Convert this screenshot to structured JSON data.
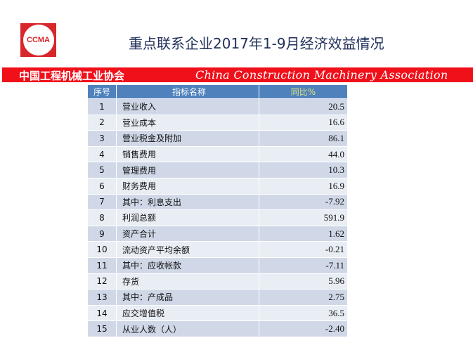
{
  "logo": "CCMA",
  "title": "重点联系企业2017年1-9月经济效益情况",
  "band": {
    "cn": "中国工程机械工业协会",
    "en": "China Construction Machinery Association",
    "color": "#f0101a"
  },
  "table": {
    "headers": [
      "序号",
      "指标名称",
      "同比%"
    ],
    "rows": [
      [
        "1",
        "营业收入",
        "20.5"
      ],
      [
        "2",
        "营业成本",
        "16.6"
      ],
      [
        "3",
        "营业税金及附加",
        "86.1"
      ],
      [
        "4",
        "销售费用",
        "44.0"
      ],
      [
        "5",
        "管理费用",
        "10.3"
      ],
      [
        "6",
        "财务费用",
        "16.9"
      ],
      [
        "7",
        "其中：利息支出",
        "-7.92"
      ],
      [
        "8",
        "利润总额",
        "591.9"
      ],
      [
        "9",
        "资产合计",
        "1.62"
      ],
      [
        "10",
        "流动资产平均余额",
        "-0.21"
      ],
      [
        "11",
        "其中：应收帐款",
        "-7.11"
      ],
      [
        "12",
        "存货",
        "5.96"
      ],
      [
        "13",
        "其中：产成品",
        "2.75"
      ],
      [
        "14",
        "应交增值税",
        "36.5"
      ],
      [
        "15",
        "从业人数（人）",
        "-2.40"
      ]
    ]
  }
}
